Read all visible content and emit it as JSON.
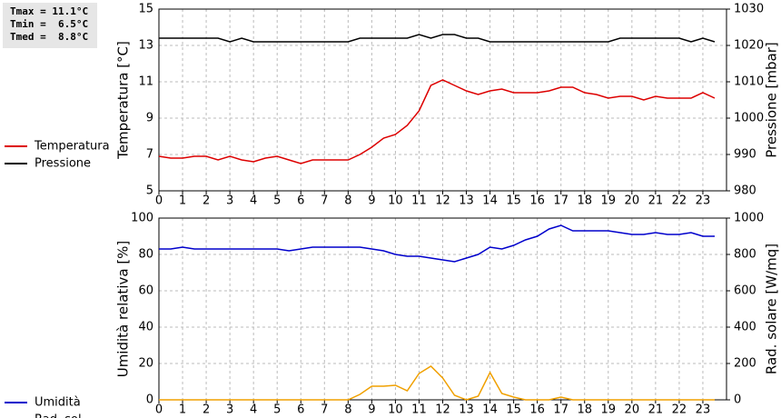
{
  "stats": [
    "Tmax = 11.1°C",
    "Tmin =  6.5°C",
    "Tmed =  8.8°C"
  ],
  "chart_data": [
    {
      "type": "line",
      "ylabel": "Temperatura [°C]",
      "y2label": "Pressione [mbar]",
      "x": [
        0,
        0.5,
        1,
        1.5,
        2,
        2.5,
        3,
        3.5,
        4,
        4.5,
        5,
        5.5,
        6,
        6.5,
        7,
        7.5,
        8,
        8.5,
        9,
        9.5,
        10,
        10.5,
        11,
        11.5,
        12,
        12.5,
        13,
        13.5,
        14,
        14.5,
        15,
        15.5,
        16,
        16.5,
        17,
        17.5,
        18,
        18.5,
        19,
        19.5,
        20,
        20.5,
        21,
        21.5,
        22,
        22.5,
        23,
        23.5
      ],
      "xlim": [
        0,
        24
      ],
      "xticks": [
        0,
        1,
        2,
        3,
        4,
        5,
        6,
        7,
        8,
        9,
        10,
        11,
        12,
        13,
        14,
        15,
        16,
        17,
        18,
        19,
        20,
        21,
        22,
        23
      ],
      "ylim": [
        5,
        15
      ],
      "yticks": [
        5,
        7,
        9,
        11,
        13,
        15
      ],
      "y2lim": [
        980,
        1030
      ],
      "y2ticks": [
        980,
        990,
        1000,
        1010,
        1020,
        1030
      ],
      "grid": true,
      "series": [
        {
          "name": "Temperatura",
          "color": "#dd0000",
          "values": [
            6.9,
            6.8,
            6.8,
            6.9,
            6.9,
            6.7,
            6.9,
            6.7,
            6.6,
            6.8,
            6.9,
            6.7,
            6.5,
            6.7,
            6.7,
            6.7,
            6.7,
            7.0,
            7.4,
            7.9,
            8.1,
            8.6,
            9.4,
            10.8,
            11.1,
            10.8,
            10.5,
            10.3,
            10.5,
            10.6,
            10.4,
            10.4,
            10.4,
            10.5,
            10.7,
            10.7,
            10.4,
            10.3,
            10.1,
            10.2,
            10.2,
            10.0,
            10.2,
            10.1,
            10.1,
            10.1,
            10.4,
            10.1
          ]
        },
        {
          "name": "Pressione",
          "color": "#000000",
          "axis": "y2",
          "values": [
            1022,
            1022,
            1022,
            1022,
            1022,
            1022,
            1021,
            1022,
            1021,
            1021,
            1021,
            1021,
            1021,
            1021,
            1021,
            1021,
            1021,
            1022,
            1022,
            1022,
            1022,
            1022,
            1023,
            1022,
            1023,
            1023,
            1022,
            1022,
            1021,
            1021,
            1021,
            1021,
            1021,
            1021,
            1021,
            1021,
            1021,
            1021,
            1021,
            1022,
            1022,
            1022,
            1022,
            1022,
            1022,
            1021,
            1022,
            1021
          ]
        }
      ]
    },
    {
      "type": "line",
      "ylabel": "Umidità relativa [%]",
      "y2label": "Rad. solare [W/mq]",
      "x": [
        0,
        0.5,
        1,
        1.5,
        2,
        2.5,
        3,
        3.5,
        4,
        4.5,
        5,
        5.5,
        6,
        6.5,
        7,
        7.5,
        8,
        8.5,
        9,
        9.5,
        10,
        10.5,
        11,
        11.5,
        12,
        12.5,
        13,
        13.5,
        14,
        14.5,
        15,
        15.5,
        16,
        16.5,
        17,
        17.5,
        18,
        18.5,
        19,
        19.5,
        20,
        20.5,
        21,
        21.5,
        22,
        22.5,
        23,
        23.5
      ],
      "xlim": [
        0,
        24
      ],
      "xticks": [
        0,
        1,
        2,
        3,
        4,
        5,
        6,
        7,
        8,
        9,
        10,
        11,
        12,
        13,
        14,
        15,
        16,
        17,
        18,
        19,
        20,
        21,
        22,
        23
      ],
      "ylim": [
        0,
        100
      ],
      "yticks": [
        0,
        20,
        40,
        60,
        80,
        100
      ],
      "y2lim": [
        0,
        1000
      ],
      "y2ticks": [
        0,
        200,
        400,
        600,
        800,
        1000
      ],
      "grid": true,
      "series": [
        {
          "name": "Umidità",
          "color": "#0000cc",
          "values": [
            83,
            83,
            84,
            83,
            83,
            83,
            83,
            83,
            83,
            83,
            83,
            82,
            83,
            84,
            84,
            84,
            84,
            84,
            83,
            82,
            80,
            79,
            79,
            78,
            77,
            76,
            78,
            80,
            84,
            83,
            85,
            88,
            90,
            94,
            96,
            93,
            93,
            93,
            93,
            92,
            91,
            91,
            92,
            91,
            91,
            92,
            90,
            90
          ]
        },
        {
          "name": "Rad. sol.",
          "color": "#f0a000",
          "axis": "y2",
          "values": [
            0,
            0,
            0,
            0,
            0,
            0,
            0,
            0,
            0,
            0,
            0,
            0,
            0,
            0,
            0,
            0,
            0,
            30,
            75,
            75,
            80,
            50,
            145,
            185,
            120,
            25,
            0,
            20,
            150,
            35,
            15,
            0,
            0,
            0,
            15,
            0,
            0,
            0,
            0,
            0,
            0,
            0,
            0,
            0,
            0,
            0,
            0,
            0
          ]
        }
      ]
    }
  ]
}
